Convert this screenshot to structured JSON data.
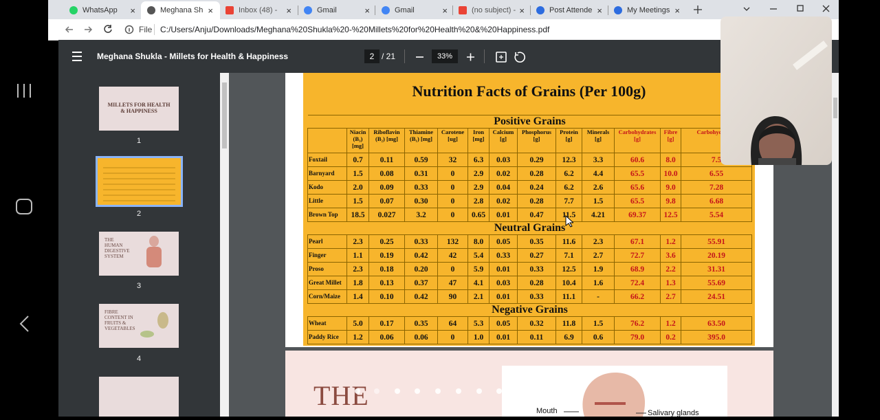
{
  "tabs": [
    "WhatsApp",
    "Meghana Sh",
    "Inbox (48) - ",
    "Gmail",
    "Gmail",
    "(no subject) -",
    "Post Attende",
    "My Meetings"
  ],
  "address": {
    "scheme": "File",
    "url": "C:/Users/Anju/Downloads/Meghana%20Shukla%20-%20Millets%20for%20Health%20&%20Happiness.pdf"
  },
  "pdf_toolbar": {
    "title": "Meghana Shukla - Millets for Health & Happiness",
    "page": "2",
    "page_count": "/ 21",
    "zoom": "33%"
  },
  "thumbnails": [
    {
      "caption": "MILLETS FOR HEALTH & HAPPINESS",
      "number": "1"
    },
    {
      "number": "2"
    },
    {
      "caption": "THE HUMAN DIGESTIVE SYSTEM",
      "number": "3"
    },
    {
      "caption": "FIBRE CONTENT IN FRUITS & VEGETABLES",
      "number": "4"
    }
  ],
  "table": {
    "title": "Nutrition Facts of Grains (Per 100g)",
    "columns": [
      "Niacin (B₃) [mg]",
      "Riboflavin (B₂) [mg]",
      "Thiamine (B₁) [mg]",
      "Carotene [ug]",
      "Iron [mg]",
      "Calcium [g]",
      "Phosphorus [g]",
      "Protein [g]",
      "Minerals [g]",
      "Carbohydrates [g]",
      "Fibre [g]",
      "Carbohydra [g]"
    ],
    "sections": [
      {
        "name": "Positive Grains",
        "rows": [
          {
            "name": "Foxtail",
            "values": [
              "0.7",
              "0.11",
              "0.59",
              "32",
              "6.3",
              "0.03",
              "0.29",
              "12.3",
              "3.3",
              "60.6",
              "8.0",
              "7.5"
            ]
          },
          {
            "name": "Barnyard",
            "values": [
              "1.5",
              "0.08",
              "0.31",
              "0",
              "2.9",
              "0.02",
              "0.28",
              "6.2",
              "4.4",
              "65.5",
              "10.0",
              "6.55"
            ]
          },
          {
            "name": "Kodo",
            "values": [
              "2.0",
              "0.09",
              "0.33",
              "0",
              "2.9",
              "0.04",
              "0.24",
              "6.2",
              "2.6",
              "65.6",
              "9.0",
              "7.28"
            ]
          },
          {
            "name": "Little",
            "values": [
              "1.5",
              "0.07",
              "0.30",
              "0",
              "2.8",
              "0.02",
              "0.28",
              "7.7",
              "1.5",
              "65.5",
              "9.8",
              "6.68"
            ]
          },
          {
            "name": "Brown Top",
            "values": [
              "18.5",
              "0.027",
              "3.2",
              "0",
              "0.65",
              "0.01",
              "0.47",
              "11.5",
              "4.21",
              "69.37",
              "12.5",
              "5.54"
            ]
          }
        ]
      },
      {
        "name": "Neutral Grains",
        "rows": [
          {
            "name": "Pearl",
            "values": [
              "2.3",
              "0.25",
              "0.33",
              "132",
              "8.0",
              "0.05",
              "0.35",
              "11.6",
              "2.3",
              "67.1",
              "1.2",
              "55.91"
            ]
          },
          {
            "name": "Finger",
            "values": [
              "1.1",
              "0.19",
              "0.42",
              "42",
              "5.4",
              "0.33",
              "0.27",
              "7.1",
              "2.7",
              "72.7",
              "3.6",
              "20.19"
            ]
          },
          {
            "name": "Proso",
            "values": [
              "2.3",
              "0.18",
              "0.20",
              "0",
              "5.9",
              "0.01",
              "0.33",
              "12.5",
              "1.9",
              "68.9",
              "2.2",
              "31.31"
            ]
          },
          {
            "name": "Great Millet",
            "values": [
              "1.8",
              "0.13",
              "0.37",
              "47",
              "4.1",
              "0.03",
              "0.28",
              "10.4",
              "1.6",
              "72.4",
              "1.3",
              "55.69"
            ]
          },
          {
            "name": "Corn/Maize",
            "values": [
              "1.4",
              "0.10",
              "0.42",
              "90",
              "2.1",
              "0.01",
              "0.33",
              "11.1",
              "-",
              "66.2",
              "2.7",
              "24.51"
            ]
          }
        ]
      },
      {
        "name": "Negative Grains",
        "rows": [
          {
            "name": "Wheat",
            "values": [
              "5.0",
              "0.17",
              "0.35",
              "64",
              "5.3",
              "0.05",
              "0.32",
              "11.8",
              "1.5",
              "76.2",
              "1.2",
              "63.50"
            ]
          },
          {
            "name": "Paddy Rice",
            "values": [
              "1.2",
              "0.06",
              "0.06",
              "0",
              "1.0",
              "0.01",
              "0.11",
              "6.9",
              "0.6",
              "79.0",
              "0.2",
              "395.0"
            ]
          }
        ]
      }
    ]
  },
  "next_page": {
    "heading": "THE",
    "labels": [
      "Mouth",
      "Salivary glands"
    ]
  }
}
